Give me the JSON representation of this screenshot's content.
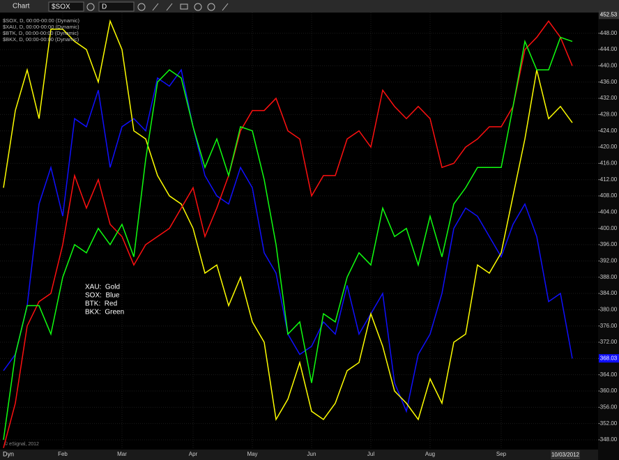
{
  "toolbar": {
    "title": "Chart",
    "symbol": "$SOX",
    "interval": "D"
  },
  "footer": {
    "mode": "Dyn",
    "copyright": "© eSignal, 2012",
    "date": "10/03/2012"
  },
  "chart_data": {
    "type": "line",
    "annotations": [
      "XAU:  Gold",
      "SOX:  Blue",
      "BTK:  Red",
      "BKX:  Green"
    ],
    "categories": [
      null,
      null,
      null,
      null,
      null,
      "Feb",
      null,
      null,
      null,
      null,
      "Mar",
      null,
      null,
      null,
      null,
      null,
      "Apr",
      null,
      null,
      null,
      null,
      "May",
      null,
      null,
      null,
      null,
      "Jun",
      null,
      null,
      null,
      null,
      "Jul",
      null,
      null,
      null,
      null,
      "Aug",
      null,
      null,
      null,
      null,
      null,
      "Sep",
      null,
      null,
      null,
      null,
      null,
      null
    ],
    "series": [
      {
        "name": "$SOX, D, 00:00-00:00 (Dynamic)",
        "color": "#1010ff",
        "values": [
          365,
          369,
          381,
          406,
          415,
          403,
          427,
          425,
          434,
          415,
          425,
          427,
          424,
          437,
          435,
          439,
          425,
          413,
          408,
          406,
          415,
          410,
          394,
          389,
          374,
          369,
          371,
          377,
          374,
          386,
          374,
          379,
          384,
          362,
          355,
          369,
          374,
          384,
          400,
          405,
          403,
          398,
          393,
          401,
          406,
          398,
          382,
          384,
          368
        ]
      },
      {
        "name": "$XAU, D, 00:00-00:00 (Dynamic)",
        "color": "#ffff00",
        "values": [
          410,
          429,
          439,
          427,
          449,
          449,
          446,
          444,
          436,
          451,
          444,
          424,
          422,
          413,
          408,
          406,
          400,
          389,
          391,
          381,
          388,
          377,
          372,
          353,
          358,
          367,
          355,
          353,
          357,
          365,
          367,
          379,
          371,
          360,
          357,
          353,
          363,
          357,
          372,
          374,
          391,
          389,
          394,
          408,
          422,
          439,
          427,
          430,
          426
        ]
      },
      {
        "name": "$BTK, D, 00:00-00:00 (Dynamic)",
        "color": "#ff1010",
        "values": [
          346,
          357,
          376,
          382,
          384,
          396,
          413,
          405,
          412,
          401,
          398,
          391,
          396,
          398,
          400,
          405,
          410,
          398,
          405,
          413,
          424,
          429,
          429,
          432,
          424,
          422,
          408,
          413,
          413,
          422,
          424,
          420,
          434,
          430,
          427,
          430,
          427,
          415,
          416,
          420,
          422,
          425,
          425,
          430,
          444,
          447,
          451,
          447,
          440
        ]
      },
      {
        "name": "$BKX, D, 00:00-00:00 (Dynamic)",
        "color": "#10ff10",
        "values": [
          348,
          369,
          381,
          381,
          374,
          388,
          396,
          394,
          400,
          396,
          401,
          393,
          417,
          436,
          439,
          437,
          425,
          415,
          422,
          413,
          425,
          424,
          412,
          396,
          374,
          377,
          362,
          379,
          377,
          388,
          394,
          391,
          405,
          398,
          400,
          391,
          403,
          393,
          406,
          410,
          415,
          415,
          415,
          430,
          446,
          439,
          439,
          447,
          446
        ]
      }
    ],
    "ylim": [
      345.6,
      453.1
    ],
    "yticks": [
      {
        "value": 348,
        "label": "348.00"
      },
      {
        "value": 352,
        "label": "352.00"
      },
      {
        "value": 356,
        "label": "356.00"
      },
      {
        "value": 360,
        "label": "360.00"
      },
      {
        "value": 364,
        "label": "364.00"
      },
      {
        "value": 368,
        "label": "368.00"
      },
      {
        "value": 372,
        "label": "372.00"
      },
      {
        "value": 376,
        "label": "376.00"
      },
      {
        "value": 380,
        "label": "380.00"
      },
      {
        "value": 384,
        "label": "384.00"
      },
      {
        "value": 388,
        "label": "388.00"
      },
      {
        "value": 392,
        "label": "392.00"
      },
      {
        "value": 396,
        "label": "396.00"
      },
      {
        "value": 400,
        "label": "400.00"
      },
      {
        "value": 404,
        "label": "404.00"
      },
      {
        "value": 408,
        "label": "408.00"
      },
      {
        "value": 412,
        "label": "412.00"
      },
      {
        "value": 416,
        "label": "416.00"
      },
      {
        "value": 420,
        "label": "420.00"
      },
      {
        "value": 424,
        "label": "424.00"
      },
      {
        "value": 428,
        "label": "428.00"
      },
      {
        "value": 432,
        "label": "432.00"
      },
      {
        "value": 436,
        "label": "436.00"
      },
      {
        "value": 440,
        "label": "440.00"
      },
      {
        "value": 444,
        "label": "444.00"
      },
      {
        "value": 448,
        "label": "448.00"
      }
    ],
    "price_markers": [
      452.53,
      368.03
    ],
    "grid": true
  }
}
